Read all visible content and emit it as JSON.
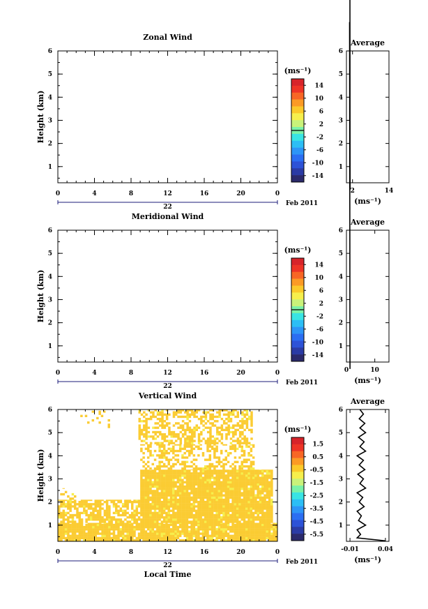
{
  "figure": {
    "date_label": "Feb 2011",
    "local_time_label": "Local Time",
    "day_label": "22",
    "unit_label": "(ms⁻¹)",
    "avg_title": "Average",
    "height_label": "Height (km)"
  },
  "chart_data": [
    {
      "type": "heatmap",
      "title": "Zonal Wind",
      "xlabel": "",
      "ylabel": "Height (km)",
      "xlim": [
        0,
        24
      ],
      "ylim": [
        0.3,
        6
      ],
      "x_ticks": [
        "0",
        "4",
        "8",
        "12",
        "16",
        "20",
        "0"
      ],
      "y_ticks": [
        "1",
        "2",
        "3",
        "4",
        "5",
        "6"
      ],
      "colorbar": {
        "label": "(ms⁻¹)",
        "ticks": [
          "14",
          "10",
          "6",
          "2",
          "-2",
          "-6",
          "-10",
          "-14"
        ],
        "range": [
          -16,
          16
        ]
      },
      "cells": [],
      "average": {
        "title": "Average",
        "xlabel": "(ms⁻¹)",
        "x_ticks": [
          "2",
          "14"
        ],
        "xlim": [
          0,
          14
        ],
        "profile": [
          [
            1.1,
            14
          ],
          [
            1.15,
            8
          ],
          [
            1.2,
            0
          ]
        ]
      }
    },
    {
      "type": "heatmap",
      "title": "Meridional Wind",
      "xlabel": "",
      "ylabel": "Height (km)",
      "xlim": [
        0,
        24
      ],
      "ylim": [
        0.3,
        6
      ],
      "x_ticks": [
        "0",
        "4",
        "8",
        "12",
        "16",
        "20",
        "0"
      ],
      "y_ticks": [
        "1",
        "2",
        "3",
        "4",
        "5",
        "6"
      ],
      "colorbar": {
        "label": "(ms⁻¹)",
        "ticks": [
          "14",
          "10",
          "6",
          "2",
          "-2",
          "-6",
          "-10",
          "-14"
        ],
        "range": [
          -16,
          16
        ]
      },
      "cells": [],
      "average": {
        "title": "Average",
        "xlabel": "(ms⁻¹)",
        "x_ticks": [
          "0",
          "10"
        ],
        "xlim": [
          0,
          15
        ],
        "profile": [
          [
            1.1,
            15
          ],
          [
            1.2,
            5
          ],
          [
            1.25,
            0
          ]
        ]
      }
    },
    {
      "type": "heatmap",
      "title": "Vertical Wind",
      "xlabel": "Local Time",
      "ylabel": "Height (km)",
      "xlim": [
        0,
        24
      ],
      "ylim": [
        0.3,
        6
      ],
      "x_ticks": [
        "0",
        "4",
        "8",
        "12",
        "16",
        "20",
        "0"
      ],
      "y_ticks": [
        "1",
        "2",
        "3",
        "4",
        "5",
        "6"
      ],
      "colorbar": {
        "label": "(ms⁻¹)",
        "ticks": [
          "1.5",
          "0.5",
          "-0.5",
          "-1.5",
          "-2.5",
          "-3.5",
          "-4.5",
          "-5.5"
        ],
        "range": [
          -6,
          2
        ]
      },
      "regions": [
        {
          "t0": 0,
          "t1": 24,
          "h0": 0.3,
          "h1": 1.1,
          "value": 0.3,
          "density": 0.92
        },
        {
          "t0": 0,
          "t1": 9,
          "h0": 1.1,
          "h1": 2.1,
          "value": 0.3,
          "density": 0.72
        },
        {
          "t0": 9,
          "t1": 23.4,
          "h0": 1.1,
          "h1": 3.4,
          "value": 0.3,
          "density": 0.95
        },
        {
          "t0": 9,
          "t1": 21.5,
          "h0": 3.4,
          "h1": 4.5,
          "value": 0.3,
          "density": 0.45
        },
        {
          "t0": 8.8,
          "t1": 21.2,
          "h0": 4.5,
          "h1": 6,
          "value": 0.3,
          "density": 0.5
        },
        {
          "t0": 2.2,
          "t1": 5.5,
          "h0": 5.2,
          "h1": 5.95,
          "value": 0.3,
          "density": 0.18
        },
        {
          "t0": 0,
          "t1": 2,
          "h0": 2.1,
          "h1": 2.6,
          "value": 0.3,
          "density": 0.3
        }
      ],
      "average": {
        "title": "Average",
        "xlabel": "(ms⁻¹)",
        "x_ticks": [
          "-0.01",
          "0.04"
        ],
        "xlim": [
          -0.015,
          0.045
        ],
        "profile": [
          [
            0.04,
            0.32
          ],
          [
            0.0,
            0.45
          ],
          [
            0.005,
            0.6
          ],
          [
            0.0,
            0.8
          ],
          [
            0.012,
            1.0
          ],
          [
            0.002,
            1.2
          ],
          [
            0.006,
            1.4
          ],
          [
            0.0,
            1.6
          ],
          [
            0.01,
            1.8
          ],
          [
            0.003,
            2.0
          ],
          [
            0.008,
            2.2
          ],
          [
            0.0,
            2.4
          ],
          [
            0.012,
            2.6
          ],
          [
            0.004,
            2.8
          ],
          [
            0.009,
            3.0
          ],
          [
            0.001,
            3.2
          ],
          [
            0.011,
            3.4
          ],
          [
            0.003,
            3.6
          ],
          [
            0.009,
            3.8
          ],
          [
            0.0,
            4.0
          ],
          [
            0.012,
            4.2
          ],
          [
            0.004,
            4.4
          ],
          [
            0.01,
            4.6
          ],
          [
            0.002,
            4.8
          ],
          [
            0.012,
            5.0
          ],
          [
            0.004,
            5.2
          ],
          [
            0.011,
            5.4
          ],
          [
            0.003,
            5.6
          ],
          [
            0.009,
            5.8
          ],
          [
            0.004,
            6.0
          ]
        ]
      }
    }
  ]
}
